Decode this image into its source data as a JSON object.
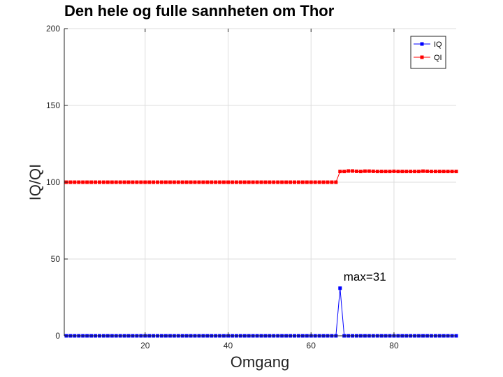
{
  "chart_data": {
    "type": "line",
    "title": "Den hele og fulle sannheten om Thor",
    "xlabel": "Omgang",
    "ylabel": "IQ/QI",
    "xlim": [
      0.5,
      95
    ],
    "ylim": [
      0,
      200
    ],
    "xticks": [
      20,
      40,
      60,
      80
    ],
    "yticks": [
      0,
      50,
      100,
      150,
      200
    ],
    "grid": true,
    "legend_position": "top-right",
    "series": [
      {
        "name": "IQ",
        "color": "#0000ff",
        "marker": "square",
        "x_start": 1,
        "x_step": 1,
        "values": [
          0,
          0,
          0,
          0,
          0,
          0,
          0,
          0,
          0,
          0,
          0,
          0,
          0,
          0,
          0,
          0,
          0,
          0,
          0,
          0,
          0,
          0,
          0,
          0,
          0,
          0,
          0,
          0,
          0,
          0,
          0,
          0,
          0,
          0,
          0,
          0,
          0,
          0,
          0,
          0,
          0,
          0,
          0,
          0,
          0,
          0,
          0,
          0,
          0,
          0,
          0,
          0,
          0,
          0,
          0,
          0,
          0,
          0,
          0,
          0,
          0,
          0,
          0,
          0,
          0,
          0,
          31,
          0,
          0,
          0,
          0,
          0,
          0,
          0,
          0,
          0,
          0,
          0,
          0,
          0,
          0,
          0,
          0,
          0,
          0,
          0,
          0,
          0,
          0,
          0,
          0,
          0,
          0,
          0,
          0
        ]
      },
      {
        "name": "QI",
        "color": "#ff0000",
        "marker": "square",
        "x_start": 1,
        "x_step": 1,
        "values": [
          100,
          100,
          100,
          100,
          100,
          100,
          100,
          100,
          100,
          100,
          100,
          100,
          100,
          100,
          100,
          100,
          100,
          100,
          100,
          100,
          100,
          100,
          100,
          100,
          100,
          100,
          100,
          100,
          100,
          100,
          100,
          100,
          100,
          100,
          100,
          100,
          100,
          100,
          100,
          100,
          100,
          100,
          100,
          100,
          100,
          100,
          100,
          100,
          100,
          100,
          100,
          100,
          100,
          100,
          100,
          100,
          100,
          100,
          100,
          100,
          100,
          100,
          100,
          100,
          100,
          100,
          107,
          107,
          107.3,
          107.3,
          107.1,
          107,
          107.2,
          107.2,
          107.1,
          107,
          107,
          107,
          107,
          107.1,
          107,
          107,
          107,
          107,
          107,
          107,
          107.2,
          107.1,
          107,
          107,
          107,
          107,
          107,
          107,
          107
        ]
      }
    ],
    "annotations": [
      {
        "text": "max=31",
        "x": 67,
        "y": 31
      }
    ]
  }
}
